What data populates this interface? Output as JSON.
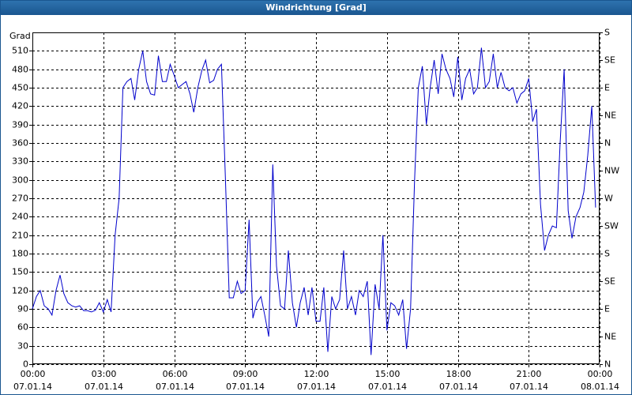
{
  "chart_data": {
    "type": "line",
    "title": "Windrichtung [Grad]",
    "y_label": "Grad",
    "xlim": [
      0,
      24
    ],
    "xticks": [
      {
        "value": 0,
        "label": "00:00",
        "date": "07.01.14"
      },
      {
        "value": 3,
        "label": "03:00",
        "date": "07.01.14"
      },
      {
        "value": 6,
        "label": "06:00",
        "date": "07.01.14"
      },
      {
        "value": 9,
        "label": "09:00",
        "date": "07.01.14"
      },
      {
        "value": 12,
        "label": "12:00",
        "date": "07.01.14"
      },
      {
        "value": 15,
        "label": "15:00",
        "date": "07.01.14"
      },
      {
        "value": 18,
        "label": "18:00",
        "date": "07.01.14"
      },
      {
        "value": 21,
        "label": "21:00",
        "date": "07.01.14"
      },
      {
        "value": 24,
        "label": "00:00",
        "date": "08.01.14"
      }
    ],
    "ylim": [
      0,
      540
    ],
    "yticks": [
      0,
      30,
      60,
      90,
      120,
      150,
      180,
      210,
      240,
      270,
      300,
      330,
      360,
      390,
      420,
      450,
      480,
      510
    ],
    "y2lim": [
      0,
      540
    ],
    "y2ticks": [
      {
        "value": 0,
        "label": "N"
      },
      {
        "value": 45,
        "label": "NE"
      },
      {
        "value": 90,
        "label": "E"
      },
      {
        "value": 135,
        "label": "SE"
      },
      {
        "value": 180,
        "label": "S"
      },
      {
        "value": 225,
        "label": "SW"
      },
      {
        "value": 270,
        "label": "W"
      },
      {
        "value": 315,
        "label": "NW"
      },
      {
        "value": 360,
        "label": "N"
      },
      {
        "value": 405,
        "label": "NE"
      },
      {
        "value": 450,
        "label": "E"
      },
      {
        "value": 495,
        "label": "SE"
      },
      {
        "value": 540,
        "label": "S"
      }
    ],
    "grid": true,
    "x": [
      0,
      0.17,
      0.33,
      0.5,
      0.67,
      0.83,
      1,
      1.17,
      1.33,
      1.5,
      1.67,
      1.83,
      2,
      2.17,
      2.33,
      2.5,
      2.67,
      2.83,
      3,
      3.17,
      3.33,
      3.5,
      3.67,
      3.83,
      4,
      4.17,
      4.33,
      4.5,
      4.67,
      4.83,
      5,
      5.17,
      5.33,
      5.5,
      5.67,
      5.83,
      6,
      6.17,
      6.33,
      6.5,
      6.67,
      6.83,
      7,
      7.17,
      7.33,
      7.5,
      7.67,
      7.83,
      8,
      8.17,
      8.33,
      8.5,
      8.67,
      8.83,
      9,
      9.17,
      9.33,
      9.5,
      9.67,
      9.83,
      10,
      10.17,
      10.33,
      10.5,
      10.67,
      10.83,
      11,
      11.17,
      11.33,
      11.5,
      11.67,
      11.83,
      12,
      12.17,
      12.33,
      12.5,
      12.67,
      12.83,
      13,
      13.17,
      13.33,
      13.5,
      13.67,
      13.83,
      14,
      14.17,
      14.33,
      14.5,
      14.67,
      14.83,
      15,
      15.17,
      15.33,
      15.5,
      15.67,
      15.83,
      16,
      16.17,
      16.33,
      16.5,
      16.67,
      16.83,
      17,
      17.17,
      17.33,
      17.5,
      17.67,
      17.83,
      18,
      18.17,
      18.33,
      18.5,
      18.67,
      18.83,
      19,
      19.17,
      19.33,
      19.5,
      19.67,
      19.83,
      20,
      20.17,
      20.33,
      20.5,
      20.67,
      20.83,
      21,
      21.17,
      21.33,
      21.5,
      21.67,
      21.83,
      22,
      22.17,
      22.33,
      22.5,
      22.67,
      22.83,
      23,
      23.17,
      23.33,
      23.5,
      23.67,
      23.83
    ],
    "series": [
      {
        "color": "#0000cc",
        "values": [
          90,
          110,
          120,
          95,
          90,
          80,
          120,
          145,
          115,
          100,
          95,
          93,
          95,
          87,
          87,
          85,
          88,
          100,
          85,
          105,
          85,
          210,
          270,
          450,
          460,
          465,
          430,
          480,
          510,
          460,
          440,
          438,
          502,
          460,
          460,
          488,
          470,
          450,
          455,
          460,
          440,
          410,
          450,
          478,
          495,
          458,
          462,
          480,
          488,
          300,
          108,
          108,
          135,
          115,
          120,
          235,
          75,
          100,
          110,
          80,
          45,
          325,
          160,
          95,
          90,
          185,
          100,
          60,
          100,
          125,
          80,
          125,
          70,
          70,
          125,
          20,
          110,
          90,
          105,
          185,
          90,
          110,
          80,
          120,
          110,
          135,
          15,
          130,
          90,
          210,
          55,
          100,
          95,
          80,
          105,
          25,
          90,
          300,
          450,
          485,
          390,
          450,
          495,
          440,
          505,
          480,
          465,
          435,
          500,
          430,
          465,
          480,
          440,
          450,
          515,
          450,
          460,
          505,
          450,
          475,
          450,
          445,
          450,
          425,
          440,
          445,
          465,
          395,
          415,
          260,
          185,
          210,
          225,
          222,
          360,
          480,
          250,
          205,
          240,
          255,
          280,
          340,
          420,
          255
        ]
      }
    ]
  }
}
